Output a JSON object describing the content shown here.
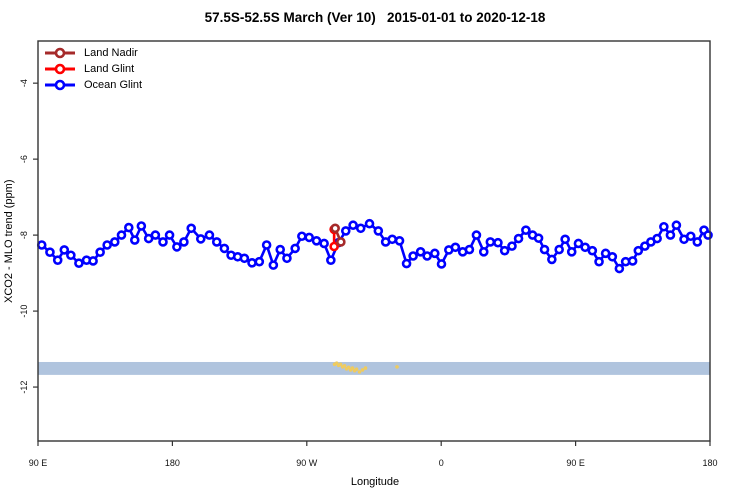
{
  "title": "57.5S-52.5S March (Ver 10)   2015-01-01 to 2020-12-18",
  "legend": {
    "items": [
      {
        "label": "Land Nadir",
        "color": "#A52A2A"
      },
      {
        "label": "Land Glint",
        "color": "#FF0000"
      },
      {
        "label": "Ocean Glint",
        "color": "#0000FF"
      }
    ]
  },
  "axes": {
    "x": {
      "label": "Longitude",
      "min": 90,
      "max": 540,
      "ticks": [
        {
          "value": 90,
          "label": "90 E"
        },
        {
          "value": 180,
          "label": "180"
        },
        {
          "value": 270,
          "label": "90 W"
        },
        {
          "value": 360,
          "label": "0"
        },
        {
          "value": 450,
          "label": "90 E"
        },
        {
          "value": 540,
          "label": "180"
        }
      ]
    },
    "y": {
      "label": "XCO2 - MLO trend (ppm)",
      "min": -13.42,
      "max": -2.89,
      "ticks": [
        {
          "value": -4,
          "label": "-4"
        },
        {
          "value": -6,
          "label": "-6"
        },
        {
          "value": -8,
          "label": "-8"
        },
        {
          "value": -10,
          "label": "-10"
        },
        {
          "value": -12,
          "label": "-12"
        }
      ]
    }
  },
  "colors": {
    "axis": "#333333",
    "background": "#FFFFFF"
  },
  "chart_data": {
    "type": "line",
    "title": "57.5S-52.5S March (Ver 10)   2015-01-01 to 2020-12-18",
    "xlabel": "Longitude",
    "ylabel": "XCO2 - MLO trend (ppm)",
    "xlim": [
      90,
      540
    ],
    "ylim": [
      -13.42,
      -2.89
    ],
    "x_units": "degrees along axis; axis spans 450 deg: 90E→180→90W→0→90E→180",
    "legend_position": "top-left",
    "grid": false,
    "series": [
      {
        "name": "Ocean Glint",
        "color": "#0000FF",
        "marker": "open-circle",
        "points": [
          [
            92.5,
            -8.26
          ],
          [
            98.0,
            -8.45
          ],
          [
            103.2,
            -8.66
          ],
          [
            107.6,
            -8.39
          ],
          [
            112.0,
            -8.53
          ],
          [
            117.4,
            -8.74
          ],
          [
            122.5,
            -8.66
          ],
          [
            126.9,
            -8.68
          ],
          [
            131.6,
            -8.45
          ],
          [
            136.3,
            -8.26
          ],
          [
            141.4,
            -8.18
          ],
          [
            145.9,
            -8.0
          ],
          [
            150.8,
            -7.8
          ],
          [
            154.8,
            -8.13
          ],
          [
            159.2,
            -7.76
          ],
          [
            164.1,
            -8.09
          ],
          [
            168.6,
            -8.0
          ],
          [
            173.7,
            -8.18
          ],
          [
            178.1,
            -8.0
          ],
          [
            183.0,
            -8.31
          ],
          [
            187.7,
            -8.18
          ],
          [
            192.6,
            -7.82
          ],
          [
            199.0,
            -8.1
          ],
          [
            204.8,
            -8.0
          ],
          [
            209.7,
            -8.18
          ],
          [
            214.8,
            -8.35
          ],
          [
            219.3,
            -8.53
          ],
          [
            223.7,
            -8.57
          ],
          [
            228.2,
            -8.61
          ],
          [
            233.3,
            -8.73
          ],
          [
            238.2,
            -8.7
          ],
          [
            243.1,
            -8.26
          ],
          [
            247.6,
            -8.79
          ],
          [
            252.2,
            -8.38
          ],
          [
            256.7,
            -8.61
          ],
          [
            262.2,
            -8.35
          ],
          [
            266.7,
            -8.03
          ],
          [
            271.6,
            -8.06
          ],
          [
            276.5,
            -8.15
          ],
          [
            281.6,
            -8.22
          ],
          [
            286.1,
            -8.66
          ],
          [
            291.2,
            -8.2
          ],
          [
            296.1,
            -7.89
          ],
          [
            301.0,
            -7.74
          ],
          [
            306.1,
            -7.82
          ],
          [
            312.0,
            -7.7
          ],
          [
            317.9,
            -7.89
          ],
          [
            322.8,
            -8.18
          ],
          [
            327.2,
            -8.11
          ],
          [
            332.1,
            -8.15
          ],
          [
            336.8,
            -8.75
          ],
          [
            341.2,
            -8.55
          ],
          [
            346.2,
            -8.44
          ],
          [
            350.6,
            -8.55
          ],
          [
            355.7,
            -8.48
          ],
          [
            360.2,
            -8.76
          ],
          [
            365.1,
            -8.39
          ],
          [
            369.5,
            -8.32
          ],
          [
            374.4,
            -8.44
          ],
          [
            378.9,
            -8.38
          ],
          [
            383.6,
            -8.0
          ],
          [
            388.5,
            -8.44
          ],
          [
            392.9,
            -8.18
          ],
          [
            398.0,
            -8.2
          ],
          [
            402.5,
            -8.41
          ],
          [
            407.4,
            -8.29
          ],
          [
            411.8,
            -8.09
          ],
          [
            416.7,
            -7.87
          ],
          [
            421.2,
            -8.0
          ],
          [
            425.2,
            -8.08
          ],
          [
            429.2,
            -8.38
          ],
          [
            434.1,
            -8.64
          ],
          [
            439.0,
            -8.38
          ],
          [
            443.0,
            -8.11
          ],
          [
            447.4,
            -8.44
          ],
          [
            451.9,
            -8.22
          ],
          [
            456.4,
            -8.32
          ],
          [
            461.2,
            -8.41
          ],
          [
            465.7,
            -8.7
          ],
          [
            470.1,
            -8.48
          ],
          [
            474.6,
            -8.57
          ],
          [
            479.3,
            -8.88
          ],
          [
            483.5,
            -8.7
          ],
          [
            488.2,
            -8.68
          ],
          [
            492.0,
            -8.41
          ],
          [
            496.4,
            -8.29
          ],
          [
            500.4,
            -8.18
          ],
          [
            504.6,
            -8.09
          ],
          [
            509.1,
            -7.78
          ],
          [
            513.5,
            -8.0
          ],
          [
            517.5,
            -7.74
          ],
          [
            522.6,
            -8.11
          ],
          [
            527.1,
            -8.03
          ],
          [
            531.5,
            -8.18
          ],
          [
            536.0,
            -7.87
          ],
          [
            538.7,
            -8.0
          ]
        ]
      },
      {
        "name": "Land Glint",
        "color": "#FF0000",
        "marker": "open-circle",
        "points": [
          [
            288.3,
            -7.85
          ],
          [
            288.3,
            -8.3
          ]
        ]
      },
      {
        "name": "Land Nadir",
        "color": "#A52A2A",
        "marker": "open-circle",
        "points": [
          [
            289.0,
            -7.82
          ],
          [
            292.8,
            -8.18
          ]
        ]
      }
    ],
    "band": {
      "description": "horizontal shaded strip spanning full x range",
      "color": "#B0C4DE",
      "v_from": -11.34,
      "v_to": -11.68
    },
    "scatter_dots": {
      "description": "small gold dots inside shaded strip",
      "color": "#EFCB5F",
      "points": [
        [
          288.6,
          -11.4
        ],
        [
          290.0,
          -11.37
        ],
        [
          291.3,
          -11.43
        ],
        [
          292.6,
          -11.4
        ],
        [
          294.0,
          -11.47
        ],
        [
          295.3,
          -11.44
        ],
        [
          296.6,
          -11.52
        ],
        [
          298.0,
          -11.48
        ],
        [
          299.3,
          -11.55
        ],
        [
          300.6,
          -11.5
        ],
        [
          302.0,
          -11.57
        ],
        [
          303.3,
          -11.53
        ],
        [
          305.3,
          -11.6
        ],
        [
          307.3,
          -11.55
        ],
        [
          309.3,
          -11.5
        ],
        [
          330.4,
          -11.47
        ]
      ]
    }
  }
}
